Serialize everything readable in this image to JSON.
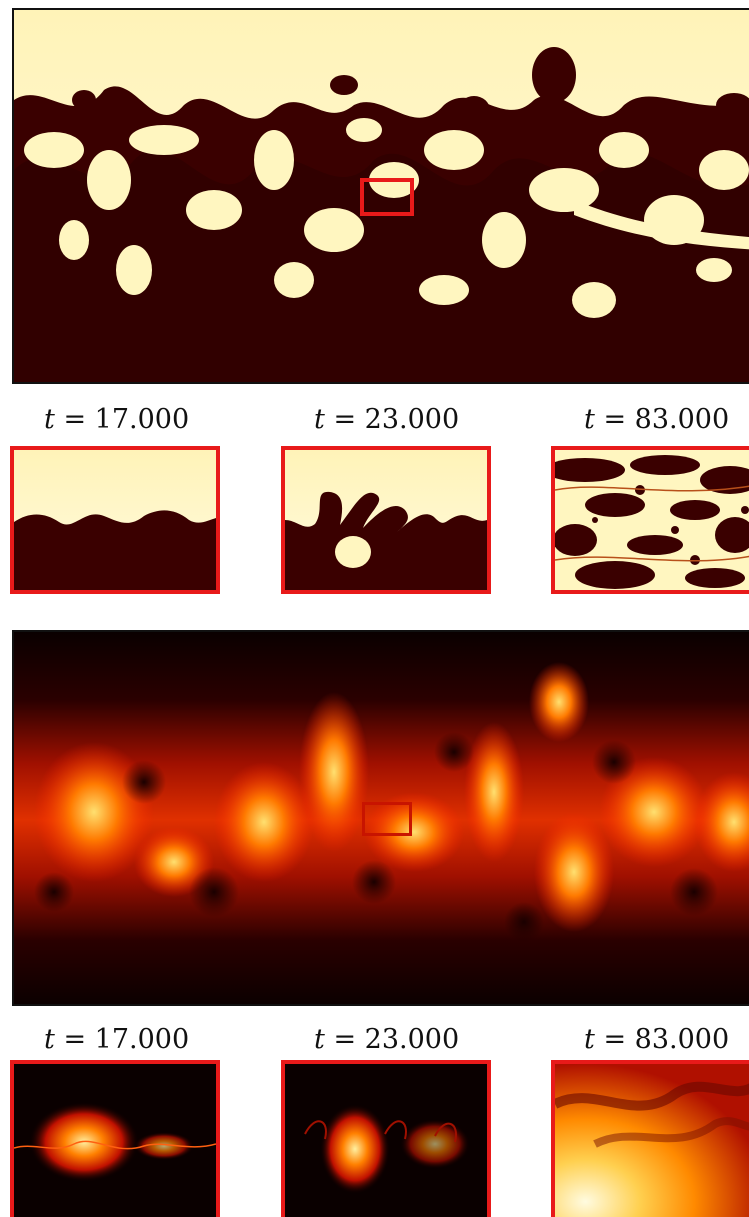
{
  "figure": {
    "time_labels_top": [
      {
        "var": "t",
        "eq": "=",
        "value": "17.000"
      },
      {
        "var": "t",
        "eq": "=",
        "value": "23.000"
      },
      {
        "var": "t",
        "eq": "=",
        "value": "83.000"
      }
    ],
    "time_labels_bottom": [
      {
        "var": "t",
        "eq": "=",
        "value": "17.000"
      },
      {
        "var": "t",
        "eq": "=",
        "value": "23.000"
      },
      {
        "var": "t",
        "eq": "=",
        "value": "83.000"
      }
    ],
    "colors": {
      "light_fluid": "#fff6c0",
      "dark_fluid": "#3a0000",
      "highlight_box": "#e81a1a",
      "heat_black": "#0a0000",
      "heat_red": "#c81400",
      "heat_orange": "#ff7a00",
      "heat_yellow": "#ffe070"
    }
  }
}
